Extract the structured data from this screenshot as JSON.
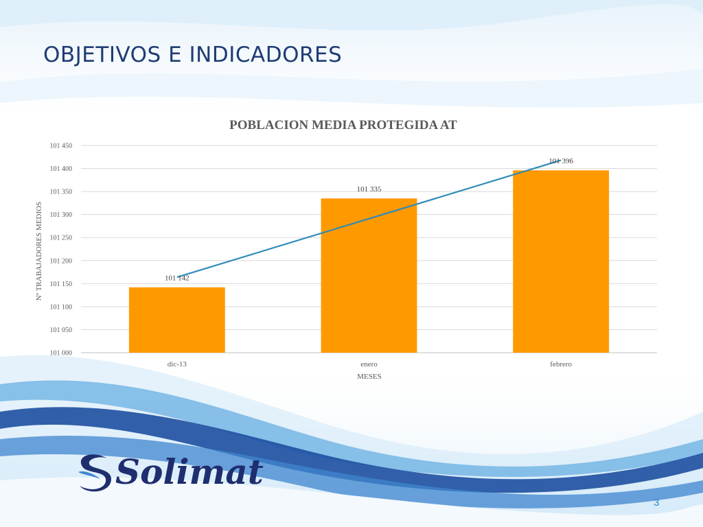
{
  "slide": {
    "title": "OBJETIVOS E INDICADORES",
    "page_number": "3",
    "logo_text": "Solimat"
  },
  "colors": {
    "title": "#1f3c73",
    "bar": "#ff9900",
    "trend_line": "#2e8bb7",
    "wave_dark": "#1e4fa0",
    "wave_light": "#8fc6ea",
    "logo": "#1e2e6e"
  },
  "chart_data": {
    "type": "bar",
    "title": "POBLACION MEDIA PROTEGIDA AT",
    "xlabel": "MESES",
    "ylabel": "Nº TRABAJADORES MEDIOS",
    "categories": [
      "dic-13",
      "enero",
      "febrero"
    ],
    "values": [
      101142,
      101335,
      101396
    ],
    "data_labels": [
      "101 142",
      "101 335",
      "101 396"
    ],
    "ylim": [
      101000,
      101450
    ],
    "yticks": [
      101000,
      101050,
      101100,
      101150,
      101200,
      101250,
      101300,
      101350,
      101400,
      101450
    ],
    "ytick_labels": [
      "101 000",
      "101 050",
      "101 100",
      "101 150",
      "101 200",
      "101 250",
      "101 300",
      "101 350",
      "101 400",
      "101 450"
    ],
    "trendline": "linear",
    "grid": true,
    "legend": "none"
  }
}
